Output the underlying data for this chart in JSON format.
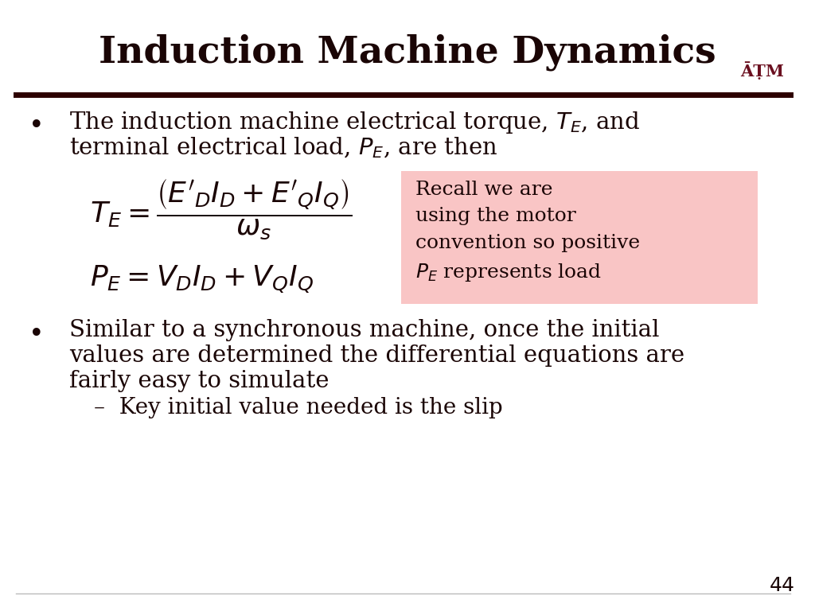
{
  "title": "Induction Machine Dynamics",
  "title_color": "#1a0505",
  "title_fontsize": 34,
  "bg_color": "#ffffff",
  "line_color": "#2d0000",
  "text_color": "#1a0505",
  "body_fontsize": 21,
  "recall_box_color": "#f9c5c5",
  "page_number": "44",
  "bullet1_l1": "The induction machine electrical torque, $T_E$, and",
  "bullet1_l2": "terminal electrical load, $P_E$, are then",
  "formula_TE": "$T_E = \\dfrac{\\left(E'_D I_D + E'_Q I_Q\\right)}{\\omega_s}$",
  "formula_PE": "$P_E = V_D I_D + V_Q I_Q$",
  "recall_text": "Recall we are\nusing the motor\nconvention so positive\n$P_E$ represents load",
  "bullet2_l1": "Similar to a synchronous machine, once the initial",
  "bullet2_l2": "values are determined the differential equations are",
  "bullet2_l3": "fairly easy to simulate",
  "sub_bullet": "–  Key initial value needed is the slip"
}
